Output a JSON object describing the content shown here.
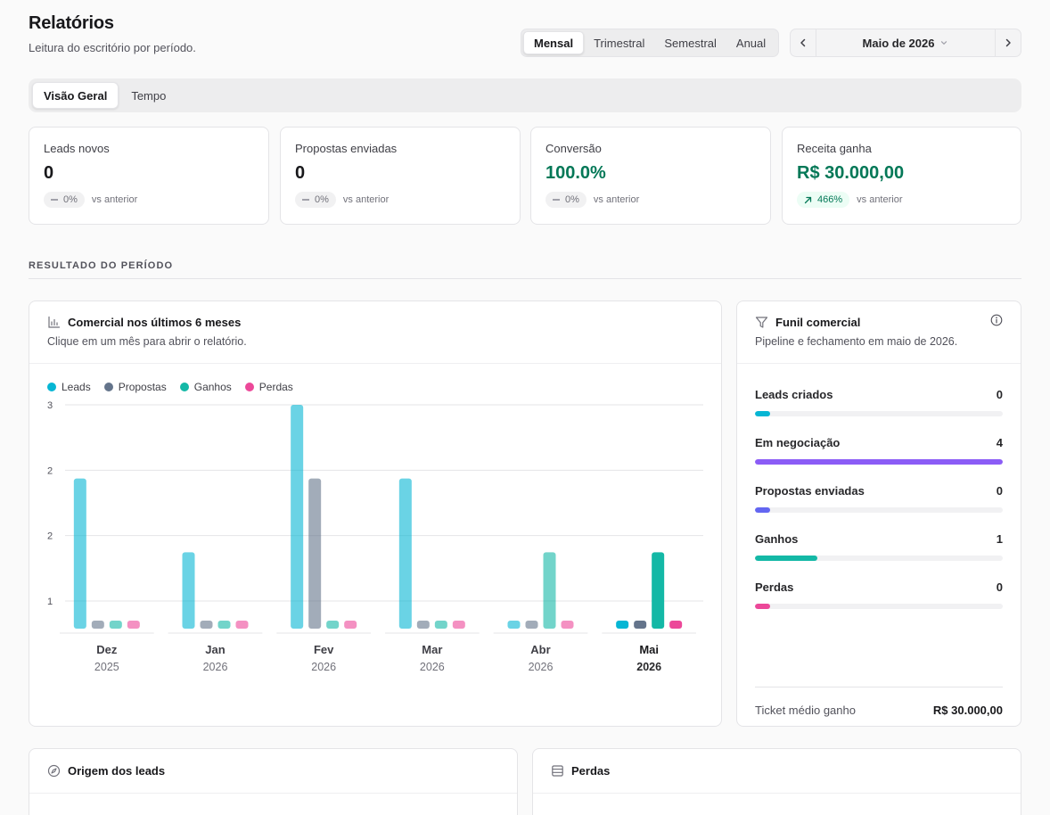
{
  "header": {
    "title": "Relatórios",
    "subtitle": "Leitura do escritório por período."
  },
  "period": {
    "options": [
      "Mensal",
      "Trimestral",
      "Semestral",
      "Anual"
    ],
    "selected": "Mensal"
  },
  "month_nav": {
    "label": "Maio de 2026",
    "prev_icon": "chevron-left-icon",
    "next_icon": "chevron-right-icon"
  },
  "tabs": [
    {
      "label": "Visão Geral",
      "active": true
    },
    {
      "label": "Tempo",
      "active": false
    }
  ],
  "kpis": [
    {
      "label": "Leads novos",
      "value": "0",
      "delta": "0%",
      "trend": "flat",
      "compare": "vs anterior"
    },
    {
      "label": "Propostas enviadas",
      "value": "0",
      "delta": "0%",
      "trend": "flat",
      "compare": "vs anterior"
    },
    {
      "label": "Conversão",
      "value": "100.0%",
      "delta": "0%",
      "trend": "flat",
      "compare": "vs anterior"
    },
    {
      "label": "Receita ganha",
      "value": "R$ 30.000,00",
      "delta": "466%",
      "trend": "up",
      "compare": "vs anterior"
    }
  ],
  "section": {
    "label": "RESULTADO DO PERÍODO"
  },
  "commercial_card": {
    "title": "Comercial nos últimos 6 meses",
    "subtitle": "Clique em um mês para abrir o relatório.",
    "icon": "bar-chart-icon"
  },
  "chart_data": {
    "type": "bar",
    "categories": [
      "Dez",
      "Jan",
      "Fev",
      "Mar",
      "Abr",
      "Mai"
    ],
    "years": [
      "2025",
      "2026",
      "2026",
      "2026",
      "2026",
      "2026"
    ],
    "selected_index": 5,
    "series": [
      {
        "name": "Leads",
        "color": "#06b6d4",
        "values": [
          2,
          1,
          3,
          2,
          0,
          0
        ]
      },
      {
        "name": "Propostas",
        "color": "#64748b",
        "values": [
          0,
          0,
          2,
          0,
          0,
          0
        ]
      },
      {
        "name": "Ganhos",
        "color": "#14b8a6",
        "values": [
          0,
          0,
          0,
          0,
          1,
          1
        ]
      },
      {
        "name": "Perdas",
        "color": "#ec4899",
        "values": [
          0,
          0,
          0,
          0,
          0,
          0
        ]
      }
    ],
    "ytick_labels": [
      "3",
      "2",
      "2",
      "1"
    ],
    "ylim": [
      0,
      3
    ],
    "grid": true,
    "legend": "top-left"
  },
  "funnel_card": {
    "title": "Funil comercial",
    "subtitle": "Pipeline e fechamento em maio de 2026.",
    "icon": "funnel-icon",
    "info_icon": "info-icon",
    "rows": [
      {
        "label": "Leads criados",
        "value": "0",
        "fraction": 0.06,
        "color": "#06b6d4"
      },
      {
        "label": "Em negociação",
        "value": "4",
        "fraction": 1.0,
        "color": "#8b5cf6"
      },
      {
        "label": "Propostas enviadas",
        "value": "0",
        "fraction": 0.06,
        "color": "#6366f1"
      },
      {
        "label": "Ganhos",
        "value": "1",
        "fraction": 0.25,
        "color": "#14b8a6"
      },
      {
        "label": "Perdas",
        "value": "0",
        "fraction": 0.06,
        "color": "#ec4899"
      }
    ],
    "ticket_label": "Ticket médio ganho",
    "ticket_value": "R$ 30.000,00"
  },
  "origin_card": {
    "title": "Origem dos leads",
    "icon": "compass-icon"
  },
  "losses_card": {
    "title": "Perdas",
    "icon": "table-icon"
  }
}
